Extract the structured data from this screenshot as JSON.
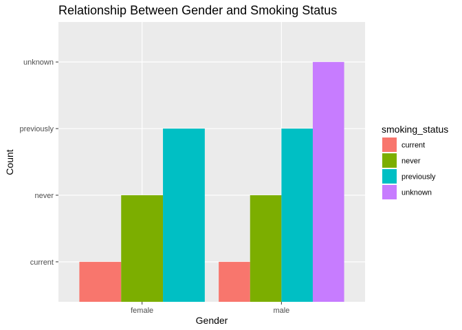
{
  "chart_data": {
    "type": "bar",
    "title": "Relationship Between Gender and Smoking Status",
    "xlabel": "Gender",
    "ylabel": "Count",
    "categories": [
      "female",
      "male"
    ],
    "y_levels": [
      "current",
      "never",
      "previously",
      "unknown"
    ],
    "series": [
      {
        "name": "current",
        "color": "#F8766D",
        "values": [
          "current",
          "current"
        ]
      },
      {
        "name": "never",
        "color": "#7CAE00",
        "values": [
          "never",
          "never"
        ]
      },
      {
        "name": "previously",
        "color": "#00BFC4",
        "values": [
          "previously",
          "previously"
        ]
      },
      {
        "name": "unknown",
        "color": "#C77CFF",
        "values": [
          null,
          "unknown"
        ]
      }
    ],
    "legend": {
      "title": "smoking_status",
      "position": "right"
    },
    "grid": true,
    "panel_color": "#EBEBEB"
  }
}
